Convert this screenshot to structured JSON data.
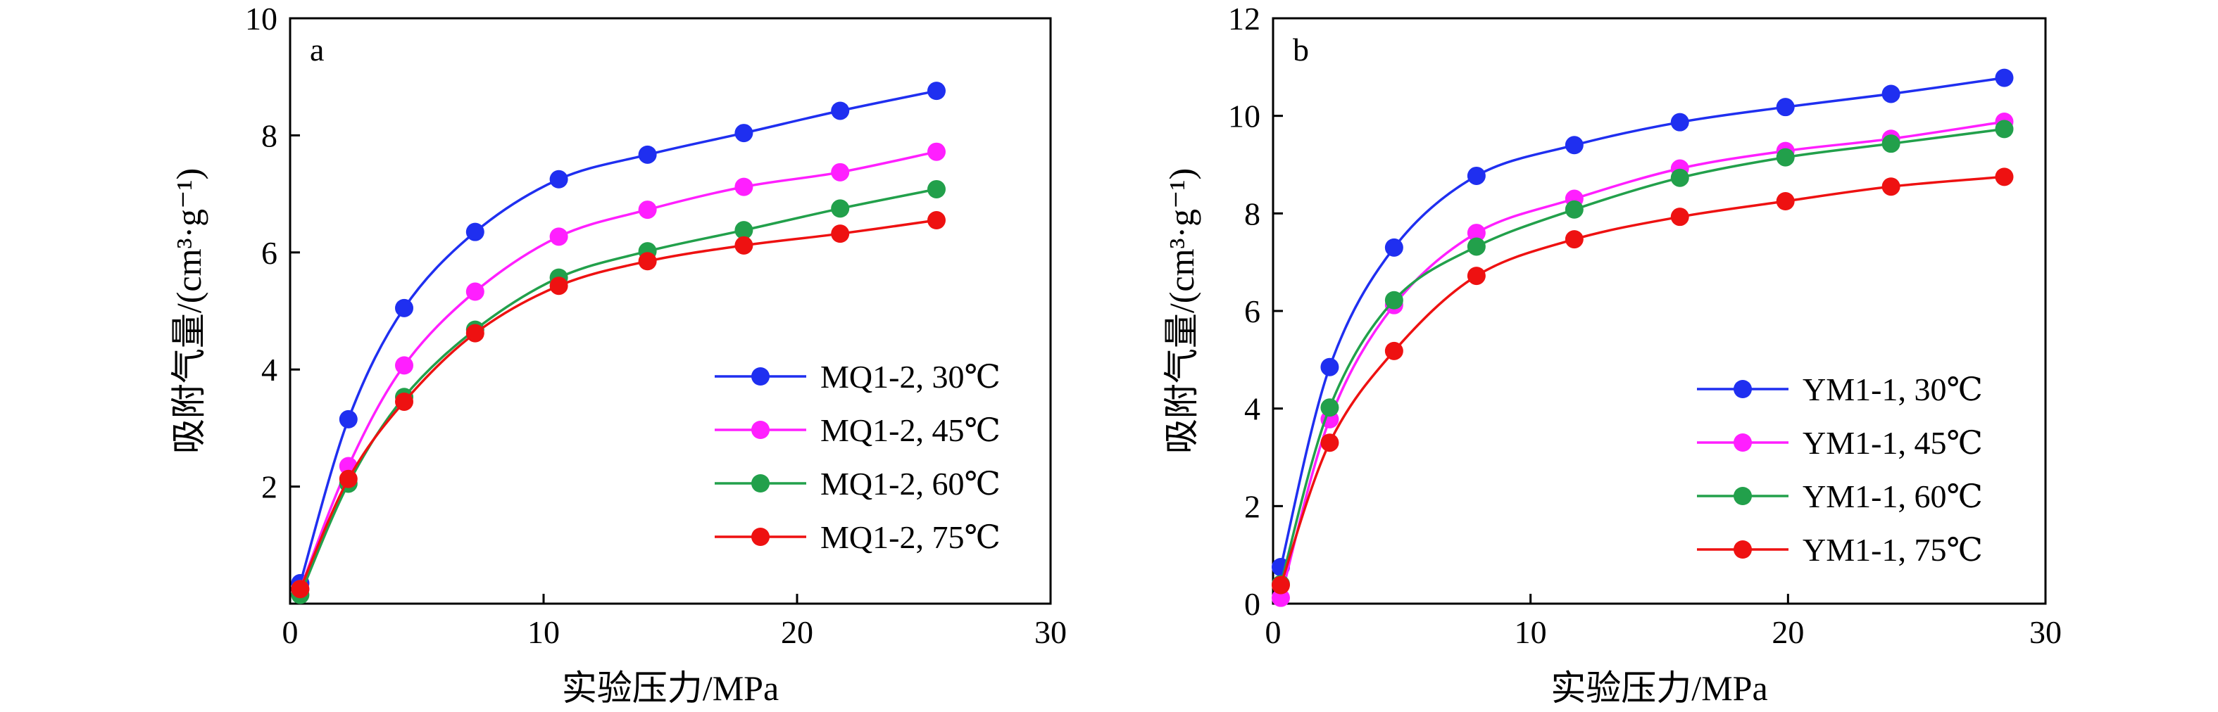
{
  "chart_data": [
    {
      "type": "line",
      "panel_label": "a",
      "xlabel": "实验压力/MPa",
      "ylabel": "吸附气量/(cm³·g⁻¹)",
      "xlim": [
        0,
        30
      ],
      "ylim": [
        0,
        10
      ],
      "xticks": [
        0,
        10,
        20,
        30
      ],
      "yticks": [
        2,
        4,
        6,
        8,
        10
      ],
      "legend_position": "lower-right",
      "series": [
        {
          "name": "MQ1-2, 30℃",
          "color": "#1f2ff0",
          "x": [
            0.4,
            2.3,
            4.5,
            7.3,
            10.6,
            14.1,
            17.9,
            21.7,
            25.5
          ],
          "y": [
            0.35,
            3.15,
            5.05,
            6.35,
            7.25,
            7.67,
            8.04,
            8.42,
            8.76
          ]
        },
        {
          "name": "MQ1-2, 45℃",
          "color": "#ff1fff",
          "x": [
            0.4,
            2.3,
            4.5,
            7.3,
            10.6,
            14.1,
            17.9,
            21.7,
            25.5
          ],
          "y": [
            0.25,
            2.35,
            4.07,
            5.33,
            6.27,
            6.73,
            7.12,
            7.37,
            7.72
          ]
        },
        {
          "name": "MQ1-2, 60℃",
          "color": "#22a04b",
          "x": [
            0.4,
            2.3,
            4.5,
            7.3,
            10.6,
            14.1,
            17.9,
            21.7,
            25.5
          ],
          "y": [
            0.15,
            2.05,
            3.53,
            4.68,
            5.57,
            6.02,
            6.38,
            6.75,
            7.08
          ]
        },
        {
          "name": "MQ1-2, 75℃",
          "color": "#ee1111",
          "x": [
            0.4,
            2.3,
            4.5,
            7.3,
            10.6,
            14.1,
            17.9,
            21.7,
            25.5
          ],
          "y": [
            0.25,
            2.13,
            3.45,
            4.62,
            5.43,
            5.85,
            6.12,
            6.32,
            6.55
          ]
        }
      ]
    },
    {
      "type": "line",
      "panel_label": "b",
      "xlabel": "实验压力/MPa",
      "ylabel": "吸附气量/(cm³·g⁻¹)",
      "xlim": [
        0,
        30
      ],
      "ylim": [
        0,
        12
      ],
      "xticks": [
        0,
        10,
        20,
        30
      ],
      "yticks": [
        0,
        2,
        4,
        6,
        8,
        10,
        12
      ],
      "legend_position": "lower-right",
      "series": [
        {
          "name": "YM1-1, 30℃",
          "color": "#1f2ff0",
          "x": [
            0.3,
            2.2,
            4.7,
            7.9,
            11.7,
            15.8,
            19.9,
            24.0,
            28.4
          ],
          "y": [
            0.75,
            4.85,
            7.3,
            8.77,
            9.4,
            9.87,
            10.18,
            10.45,
            10.78
          ]
        },
        {
          "name": "YM1-1, 45℃",
          "color": "#ff1fff",
          "x": [
            0.3,
            2.2,
            4.7,
            7.9,
            11.7,
            15.8,
            19.9,
            24.0,
            28.4
          ],
          "y": [
            0.12,
            3.78,
            6.12,
            7.6,
            8.3,
            8.92,
            9.28,
            9.53,
            9.88
          ]
        },
        {
          "name": "YM1-1, 60℃",
          "color": "#22a04b",
          "x": [
            0.3,
            2.2,
            4.7,
            7.9,
            11.7,
            15.8,
            19.9,
            24.0,
            28.4
          ],
          "y": [
            0.4,
            4.02,
            6.22,
            7.32,
            8.08,
            8.73,
            9.15,
            9.43,
            9.73
          ]
        },
        {
          "name": "YM1-1, 75℃",
          "color": "#ee1111",
          "x": [
            0.3,
            2.2,
            4.7,
            7.9,
            11.7,
            15.8,
            19.9,
            24.0,
            28.4
          ],
          "y": [
            0.38,
            3.3,
            5.18,
            6.72,
            7.47,
            7.93,
            8.25,
            8.55,
            8.75
          ]
        }
      ]
    }
  ]
}
